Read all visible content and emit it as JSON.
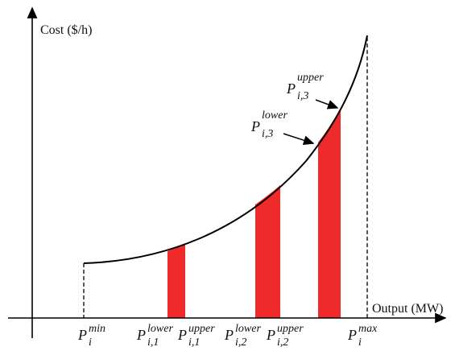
{
  "axes": {
    "y_label": "Cost   ($/h)",
    "x_label": "Output (MW)"
  },
  "symbols": {
    "p_min": {
      "base": "P",
      "sub": "i",
      "sup": "min"
    },
    "p_max": {
      "base": "P",
      "sub": "i",
      "sup": "max"
    },
    "p_i1_lower": {
      "base": "P",
      "sub": "i,1",
      "sup": "lower"
    },
    "p_i1_upper": {
      "base": "P",
      "sub": "i,1",
      "sup": "upper"
    },
    "p_i2_lower": {
      "base": "P",
      "sub": "i,2",
      "sup": "lower"
    },
    "p_i2_upper": {
      "base": "P",
      "sub": "i,2",
      "sup": "upper"
    },
    "p_i3_lower": {
      "base": "P",
      "sub": "i,3",
      "sup": "lower"
    },
    "p_i3_upper": {
      "base": "P",
      "sub": "i,3",
      "sup": "upper"
    }
  },
  "colors": {
    "zone_fill": "#ee2a2a",
    "curve": "#000000"
  }
}
